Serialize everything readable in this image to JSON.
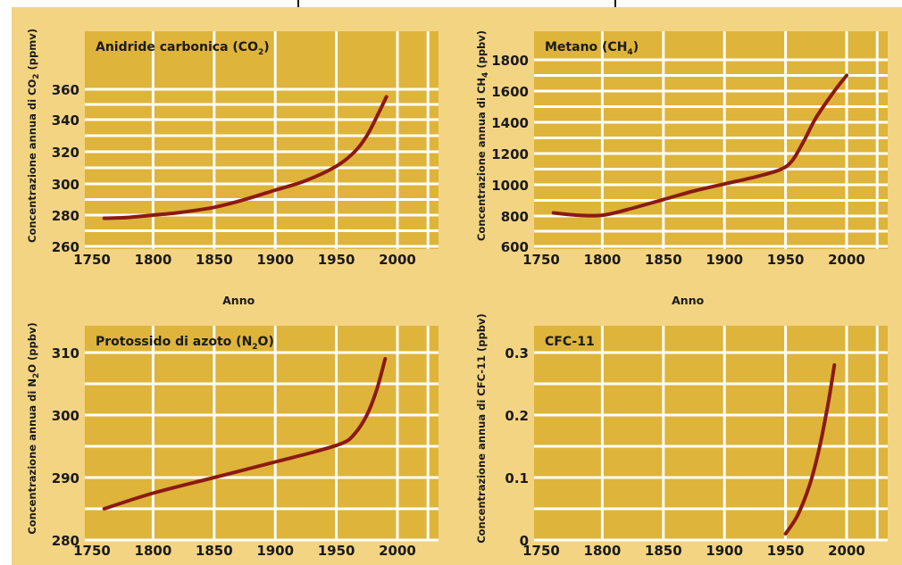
{
  "chart_data": [
    {
      "type": "line",
      "title": "Anidride carbonica (CO",
      "title_sub": "2",
      "title_end": ")",
      "ylabel": "Concentrazione annua di CO",
      "ylabel_sub": "2",
      "ylabel_end": " (ppmv)",
      "xlabel": "Anno",
      "xlim": [
        1750,
        2020
      ],
      "ylim": [
        260,
        368
      ],
      "xticks": [
        1750,
        1800,
        1850,
        1900,
        1950,
        2000
      ],
      "xtick_labels": [
        "1750",
        "1800",
        "1850",
        "1900",
        "1950",
        "2000"
      ],
      "yticks": [
        260,
        280,
        300,
        320,
        340,
        360
      ],
      "ytick_labels": [
        "260",
        "280",
        "300",
        "320",
        "340",
        "360"
      ],
      "grid": true,
      "series": [
        {
          "color": "#8b1a12",
          "x": [
            1760,
            1780,
            1800,
            1820,
            1850,
            1875,
            1900,
            1925,
            1950,
            1965,
            1975,
            1985,
            1991
          ],
          "y": [
            278,
            278.5,
            280,
            281.5,
            285,
            290,
            296,
            302,
            311,
            320,
            330,
            345,
            355
          ]
        }
      ]
    },
    {
      "type": "line",
      "title": "Metano (CH",
      "title_sub": "4",
      "title_end": ")",
      "ylabel": "Concentrazione annua di CH",
      "ylabel_sub": "4",
      "ylabel_end": " (ppbv)",
      "xlabel": "Anno",
      "xlim": [
        1750,
        2020
      ],
      "ylim": [
        600,
        1900
      ],
      "xticks": [
        1750,
        1800,
        1850,
        1900,
        1950,
        2000
      ],
      "xtick_labels": [
        "1750",
        "1800",
        "1850",
        "1900",
        "1950",
        "2000"
      ],
      "yticks": [
        600,
        800,
        1000,
        1200,
        1400,
        1600,
        1800
      ],
      "ytick_labels": [
        "600",
        "800",
        "1000",
        "1200",
        "1400",
        "1600",
        "1800"
      ],
      "grid": true,
      "series": [
        {
          "color": "#8b1a12",
          "x": [
            1760,
            1780,
            1800,
            1820,
            1850,
            1875,
            1900,
            1925,
            1945,
            1955,
            1965,
            1975,
            1990,
            2000
          ],
          "y": [
            820,
            805,
            805,
            840,
            905,
            960,
            1005,
            1050,
            1095,
            1150,
            1280,
            1430,
            1600,
            1700
          ]
        }
      ]
    },
    {
      "type": "line",
      "title": "Protossido di azoto (N",
      "title_sub": "2",
      "title_end": "O)",
      "ylabel": "Concentrazione annua di N",
      "ylabel_sub": "2",
      "ylabel_end": "O (ppbv)",
      "xlabel": "",
      "xlim": [
        1750,
        2020
      ],
      "ylim": [
        280,
        314
      ],
      "xticks": [
        1750,
        1800,
        1850,
        1900,
        1950,
        2000
      ],
      "xtick_labels": [
        "1750",
        "1800",
        "1850",
        "1900",
        "1950",
        "2000"
      ],
      "yticks": [
        280,
        290,
        300,
        310
      ],
      "ytick_labels": [
        "280",
        "290",
        "300",
        "310"
      ],
      "grid": true,
      "series": [
        {
          "color": "#8b1a12",
          "x": [
            1760,
            1800,
            1850,
            1900,
            1930,
            1955,
            1965,
            1975,
            1983,
            1990
          ],
          "y": [
            285,
            287.5,
            290,
            292.5,
            294,
            295.5,
            297,
            300,
            304,
            309
          ]
        }
      ]
    },
    {
      "type": "line",
      "title": "CFC-11",
      "title_sub": "",
      "title_end": "",
      "ylabel": "Concentrazione annua di CFC-11 (ppbv)",
      "ylabel_sub": "",
      "ylabel_end": "",
      "xlabel": "",
      "xlim": [
        1750,
        2020
      ],
      "ylim": [
        0,
        0.33
      ],
      "xticks": [
        1750,
        1800,
        1850,
        1900,
        1950,
        2000
      ],
      "xtick_labels": [
        "1750",
        "1800",
        "1850",
        "1900",
        "1950",
        "2000"
      ],
      "yticks": [
        0,
        0.1,
        0.2,
        0.3
      ],
      "ytick_labels": [
        "0",
        "0.1",
        "0.2",
        "0.3"
      ],
      "grid": true,
      "series": [
        {
          "color": "#8b1a12",
          "x": [
            1950,
            1960,
            1970,
            1978,
            1985,
            1990
          ],
          "y": [
            0.01,
            0.04,
            0.09,
            0.15,
            0.22,
            0.28
          ]
        }
      ]
    }
  ],
  "style": {
    "frame_color": "#f2d483",
    "plot_bg": "#deb43a",
    "grid_color": "#ffffff",
    "line_color": "#8b1a12",
    "text_color": "#1a1a1a"
  }
}
